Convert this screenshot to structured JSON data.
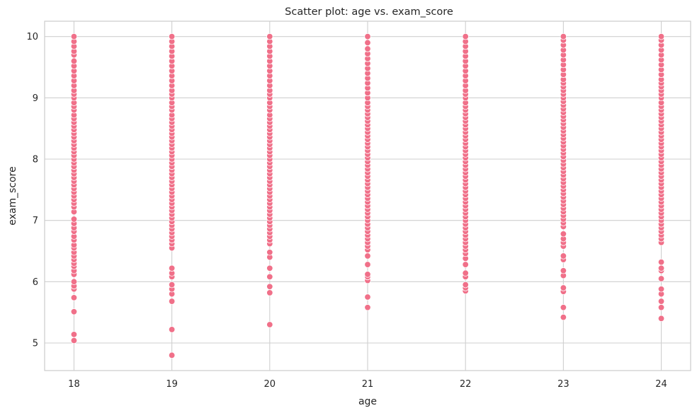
{
  "chart_data": {
    "type": "scatter",
    "title": "Scatter plot: age vs. exam_score",
    "xlabel": "age",
    "ylabel": "exam_score",
    "xlim": [
      17.7,
      24.3
    ],
    "ylim": [
      4.55,
      10.25
    ],
    "x_ticks": [
      18,
      19,
      20,
      21,
      22,
      23,
      24
    ],
    "y_ticks": [
      5,
      6,
      7,
      8,
      9,
      10
    ],
    "grid": true,
    "legend": "none",
    "colors": {
      "marker": "#f07089",
      "marker_edge": "#ffffff",
      "grid": "#cfcfcf",
      "frame": "#cccccc"
    },
    "series": [
      {
        "x": 18,
        "y": [
          5.04,
          5.14,
          5.51,
          5.74,
          5.88,
          5.93,
          6.0,
          6.12,
          6.18,
          6.25,
          6.3,
          6.36,
          6.42,
          6.48,
          6.55,
          6.6,
          6.68,
          6.74,
          6.82,
          6.88,
          6.95,
          7.02,
          7.14,
          7.22,
          7.28,
          7.34,
          7.4,
          7.46,
          7.52,
          7.58,
          7.64,
          7.7,
          7.76,
          7.82,
          7.88,
          7.94,
          8.0,
          8.06,
          8.12,
          8.18,
          8.24,
          8.3,
          8.36,
          8.42,
          8.48,
          8.54,
          8.6,
          8.66,
          8.72,
          8.8,
          8.86,
          8.92,
          9.0,
          9.06,
          9.12,
          9.2,
          9.28,
          9.36,
          9.44,
          9.52,
          9.6,
          9.7,
          9.76,
          9.84,
          9.92,
          10.0
        ]
      },
      {
        "x": 19,
        "y": [
          4.8,
          5.22,
          5.68,
          5.8,
          5.88,
          5.95,
          6.08,
          6.14,
          6.22,
          6.55,
          6.62,
          6.68,
          6.74,
          6.8,
          6.86,
          6.92,
          6.98,
          7.04,
          7.1,
          7.16,
          7.22,
          7.28,
          7.34,
          7.4,
          7.46,
          7.52,
          7.58,
          7.64,
          7.7,
          7.76,
          7.82,
          7.88,
          7.94,
          8.0,
          8.06,
          8.12,
          8.18,
          8.24,
          8.3,
          8.36,
          8.42,
          8.48,
          8.54,
          8.6,
          8.66,
          8.72,
          8.8,
          8.86,
          8.92,
          9.0,
          9.06,
          9.12,
          9.2,
          9.28,
          9.36,
          9.44,
          9.52,
          9.6,
          9.68,
          9.76,
          9.84,
          9.92,
          10.0
        ]
      },
      {
        "x": 20,
        "y": [
          5.3,
          5.82,
          5.92,
          6.08,
          6.22,
          6.4,
          6.48,
          6.62,
          6.68,
          6.74,
          6.8,
          6.86,
          6.92,
          6.98,
          7.04,
          7.1,
          7.16,
          7.22,
          7.28,
          7.34,
          7.4,
          7.46,
          7.52,
          7.58,
          7.64,
          7.7,
          7.76,
          7.82,
          7.88,
          7.94,
          8.0,
          8.06,
          8.12,
          8.18,
          8.24,
          8.3,
          8.36,
          8.42,
          8.48,
          8.54,
          8.6,
          8.66,
          8.72,
          8.8,
          8.86,
          8.92,
          9.0,
          9.06,
          9.12,
          9.2,
          9.28,
          9.36,
          9.44,
          9.52,
          9.6,
          9.68,
          9.76,
          9.84,
          9.92,
          10.0
        ]
      },
      {
        "x": 21,
        "y": [
          5.58,
          5.75,
          6.02,
          6.08,
          6.12,
          6.28,
          6.42,
          6.52,
          6.58,
          6.64,
          6.7,
          6.76,
          6.82,
          6.88,
          6.94,
          7.0,
          7.06,
          7.12,
          7.18,
          7.24,
          7.3,
          7.36,
          7.42,
          7.48,
          7.54,
          7.6,
          7.66,
          7.72,
          7.78,
          7.84,
          7.9,
          7.96,
          8.02,
          8.08,
          8.14,
          8.2,
          8.26,
          8.32,
          8.38,
          8.44,
          8.5,
          8.56,
          8.62,
          8.68,
          8.74,
          8.8,
          8.86,
          8.92,
          9.0,
          9.08,
          9.16,
          9.24,
          9.32,
          9.4,
          9.48,
          9.56,
          9.64,
          9.72,
          9.8,
          9.9,
          10.0
        ]
      },
      {
        "x": 22,
        "y": [
          5.85,
          5.9,
          5.95,
          6.08,
          6.14,
          6.28,
          6.38,
          6.46,
          6.52,
          6.58,
          6.64,
          6.7,
          6.76,
          6.82,
          6.88,
          6.94,
          7.0,
          7.06,
          7.12,
          7.18,
          7.24,
          7.3,
          7.36,
          7.42,
          7.48,
          7.54,
          7.6,
          7.66,
          7.72,
          7.78,
          7.84,
          7.9,
          7.96,
          8.02,
          8.08,
          8.14,
          8.2,
          8.26,
          8.32,
          8.38,
          8.44,
          8.5,
          8.56,
          8.62,
          8.68,
          8.74,
          8.8,
          8.86,
          8.92,
          9.0,
          9.06,
          9.12,
          9.2,
          9.28,
          9.36,
          9.44,
          9.52,
          9.6,
          9.68,
          9.76,
          9.84,
          9.92,
          10.0
        ]
      },
      {
        "x": 23,
        "y": [
          5.42,
          5.58,
          5.84,
          5.9,
          6.1,
          6.18,
          6.36,
          6.42,
          6.58,
          6.64,
          6.7,
          6.78,
          6.9,
          6.96,
          7.02,
          7.08,
          7.14,
          7.2,
          7.26,
          7.32,
          7.38,
          7.44,
          7.5,
          7.56,
          7.62,
          7.68,
          7.74,
          7.8,
          7.86,
          7.92,
          7.98,
          8.04,
          8.1,
          8.16,
          8.22,
          8.28,
          8.34,
          8.4,
          8.46,
          8.52,
          8.58,
          8.64,
          8.7,
          8.76,
          8.82,
          8.88,
          8.94,
          9.0,
          9.06,
          9.12,
          9.18,
          9.24,
          9.3,
          9.38,
          9.46,
          9.54,
          9.62,
          9.7,
          9.78,
          9.86,
          9.94,
          10.0
        ]
      },
      {
        "x": 24,
        "y": [
          5.4,
          5.58,
          5.68,
          5.8,
          5.88,
          6.05,
          6.18,
          6.22,
          6.32,
          6.64,
          6.7,
          6.76,
          6.82,
          6.88,
          6.94,
          7.0,
          7.06,
          7.12,
          7.18,
          7.24,
          7.3,
          7.36,
          7.42,
          7.48,
          7.54,
          7.6,
          7.66,
          7.72,
          7.78,
          7.84,
          7.9,
          7.96,
          8.02,
          8.08,
          8.14,
          8.2,
          8.26,
          8.32,
          8.38,
          8.44,
          8.5,
          8.56,
          8.62,
          8.68,
          8.74,
          8.8,
          8.86,
          8.92,
          9.0,
          9.06,
          9.12,
          9.18,
          9.24,
          9.3,
          9.38,
          9.46,
          9.54,
          9.62,
          9.7,
          9.78,
          9.86,
          9.94,
          10.0
        ]
      }
    ]
  }
}
